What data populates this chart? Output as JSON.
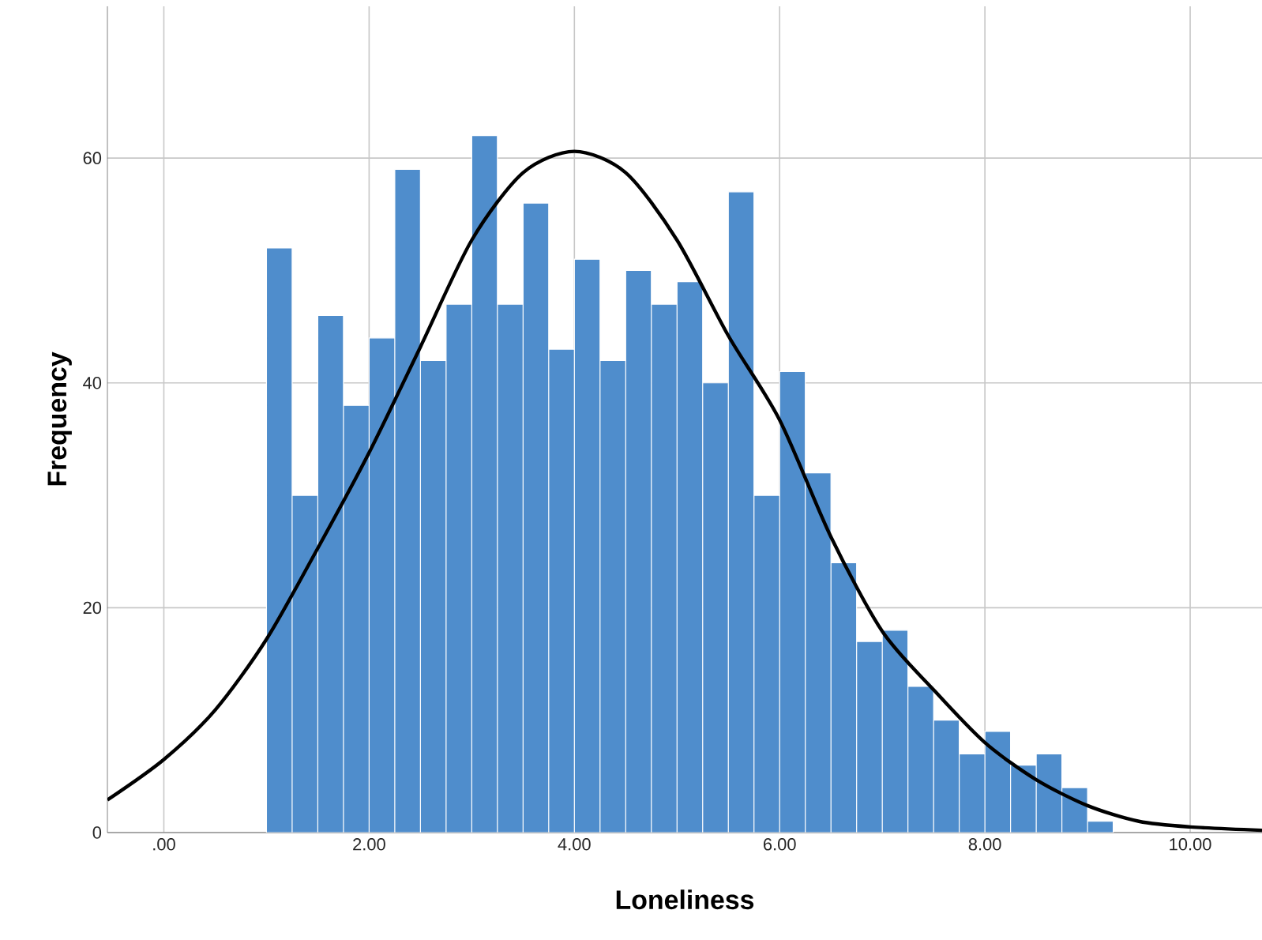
{
  "chart_data": {
    "type": "histogram",
    "xlabel": "Loneliness",
    "ylabel": "Frequency",
    "bins": [
      1.0,
      1.25,
      1.5,
      1.75,
      2.0,
      2.25,
      2.5,
      2.75,
      3.0,
      3.25,
      3.5,
      3.75,
      4.0,
      4.25,
      4.5,
      4.75,
      5.0,
      5.25,
      5.5,
      5.75,
      6.0,
      6.25,
      6.5,
      6.75,
      7.0,
      7.25,
      7.5,
      7.75,
      8.0,
      8.25,
      8.5,
      8.75,
      9.0,
      9.25
    ],
    "values": [
      52,
      30,
      46,
      38,
      44,
      59,
      42,
      47,
      62,
      47,
      56,
      43,
      51,
      42,
      50,
      47,
      49,
      40,
      57,
      30,
      41,
      32,
      24,
      17,
      18,
      13,
      10,
      7,
      9,
      6,
      7,
      4,
      1
    ],
    "color": "#4f8dcc",
    "series": [
      {
        "type": "line",
        "color": "#000000",
        "x": [
          -0.55,
          0,
          0.5,
          1,
          1.5,
          2,
          2.5,
          3,
          3.5,
          4,
          4.5,
          5,
          5.5,
          6,
          6.5,
          7,
          7.5,
          8,
          8.5,
          9,
          9.5,
          10,
          10.7
        ],
        "values": [
          2.9,
          6.5,
          10.9,
          17.2,
          25.3,
          33.8,
          43.2,
          52.7,
          58.7,
          60.6,
          58.7,
          52.7,
          44.2,
          36.7,
          26.3,
          17.9,
          12.7,
          8,
          4.7,
          2.4,
          1,
          0.5,
          0.2
        ]
      }
    ],
    "xlim": [
      -0.55,
      10.7
    ],
    "ylim": [
      0,
      73.5
    ],
    "xticks": [
      {
        "value": 0,
        "label": ".00"
      },
      {
        "value": 2,
        "label": "2.00"
      },
      {
        "value": 4,
        "label": "4.00"
      },
      {
        "value": 6,
        "label": "6.00"
      },
      {
        "value": 8,
        "label": "8.00"
      },
      {
        "value": 10,
        "label": "10.00"
      }
    ],
    "yticks": [
      0,
      20,
      40,
      60
    ],
    "grid": true
  }
}
